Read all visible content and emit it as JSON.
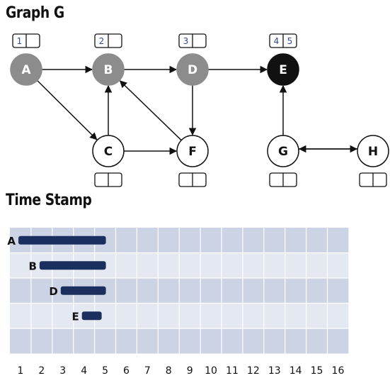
{
  "graph": {
    "title": "Graph G",
    "nodes": [
      {
        "id": "A",
        "label": "A",
        "state": "gray",
        "discover": "1",
        "finish": ""
      },
      {
        "id": "B",
        "label": "B",
        "state": "gray",
        "discover": "2",
        "finish": ""
      },
      {
        "id": "D",
        "label": "D",
        "state": "gray",
        "discover": "3",
        "finish": ""
      },
      {
        "id": "E",
        "label": "E",
        "state": "black",
        "discover": "4",
        "finish": "5"
      },
      {
        "id": "C",
        "label": "C",
        "state": "white",
        "discover": "",
        "finish": ""
      },
      {
        "id": "F",
        "label": "F",
        "state": "white",
        "discover": "",
        "finish": ""
      },
      {
        "id": "G",
        "label": "G",
        "state": "white",
        "discover": "",
        "finish": ""
      },
      {
        "id": "H",
        "label": "H",
        "state": "white",
        "discover": "",
        "finish": ""
      }
    ],
    "edges": [
      {
        "from": "A",
        "to": "B"
      },
      {
        "from": "B",
        "to": "D"
      },
      {
        "from": "D",
        "to": "E"
      },
      {
        "from": "A",
        "to": "C"
      },
      {
        "from": "C",
        "to": "B"
      },
      {
        "from": "C",
        "to": "F"
      },
      {
        "from": "F",
        "to": "B"
      },
      {
        "from": "D",
        "to": "F"
      },
      {
        "from": "G",
        "to": "E"
      },
      {
        "from": "G",
        "to": "H"
      },
      {
        "from": "H",
        "to": "G"
      }
    ],
    "colors": {
      "gray": "#8c8c8c",
      "black": "#111111",
      "white": "#ffffff",
      "stamp_text": "#2a4a9a"
    }
  },
  "timeline": {
    "title": "Time Stamp",
    "ticks": [
      "1",
      "2",
      "3",
      "4",
      "5",
      "6",
      "7",
      "8",
      "9",
      "10",
      "11",
      "12",
      "13",
      "14",
      "15",
      "16"
    ],
    "intervals": [
      {
        "label": "A",
        "start": 1,
        "end": 5
      },
      {
        "label": "B",
        "start": 2,
        "end": 5
      },
      {
        "label": "D",
        "start": 3,
        "end": 5
      },
      {
        "label": "E",
        "start": 4,
        "end": 4.8
      }
    ],
    "colors": {
      "bar": "#1b2f5e",
      "row_dark": "#ccd3e4",
      "row_light": "#e4e8f1",
      "grid": "#ffffff"
    }
  }
}
